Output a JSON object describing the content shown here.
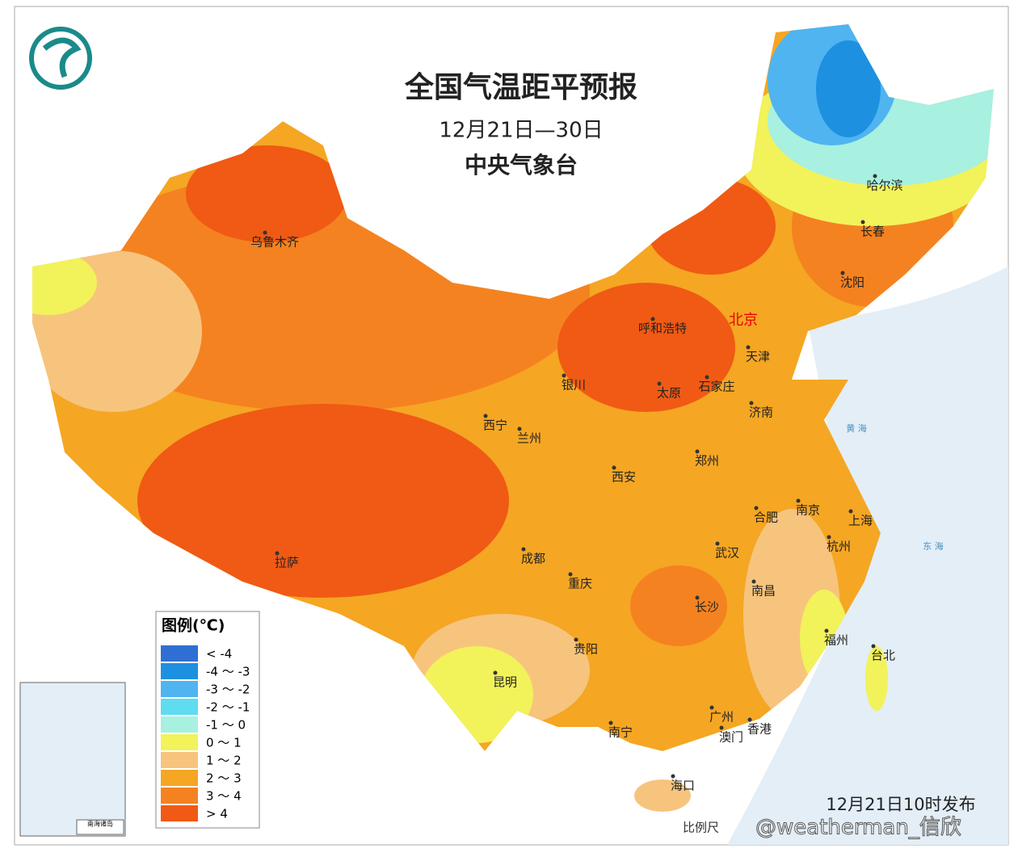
{
  "header": {
    "title": "全国气温距平预报",
    "date": "12月21日—30日",
    "issuer": "中央气象台"
  },
  "legend": {
    "title": "图例(℃)",
    "items": [
      {
        "label": "< -4",
        "color": "#2f6fd4"
      },
      {
        "label": "-4 ～ -3",
        "color": "#1e90e0"
      },
      {
        "label": "-3 ～ -2",
        "color": "#4fb4f0"
      },
      {
        "label": "-2 ～ -1",
        "color": "#5fdcf0"
      },
      {
        "label": "-1 ～ 0",
        "color": "#a8f0e0"
      },
      {
        "label": "0 ～ 1",
        "color": "#f2f25a"
      },
      {
        "label": "1 ～ 2",
        "color": "#f7c47e"
      },
      {
        "label": "2 ～ 3",
        "color": "#f5a623"
      },
      {
        "label": "3 ～ 4",
        "color": "#f58220"
      },
      {
        "label": "> 4",
        "color": "#f05a14"
      }
    ]
  },
  "capital": "北京",
  "cities": [
    "乌鲁木齐",
    "呼和浩特",
    "天津",
    "银川",
    "太原",
    "石家庄",
    "济南",
    "西宁",
    "兰州",
    "郑州",
    "西安",
    "合肥",
    "南京",
    "上海",
    "杭州",
    "拉萨",
    "成都",
    "重庆",
    "武汉",
    "长沙",
    "南昌",
    "福州",
    "台北",
    "贵阳",
    "昆明",
    "南宁",
    "广州",
    "澳门",
    "香港",
    "海口",
    "哈尔滨",
    "长春",
    "沈阳"
  ],
  "seas": [
    "黄 海",
    "东 海"
  ],
  "inset": "南海诸岛",
  "footer": {
    "release": "12月21日10时发布",
    "scale": "比例尺",
    "watermark": "@weatherman_信欣"
  }
}
